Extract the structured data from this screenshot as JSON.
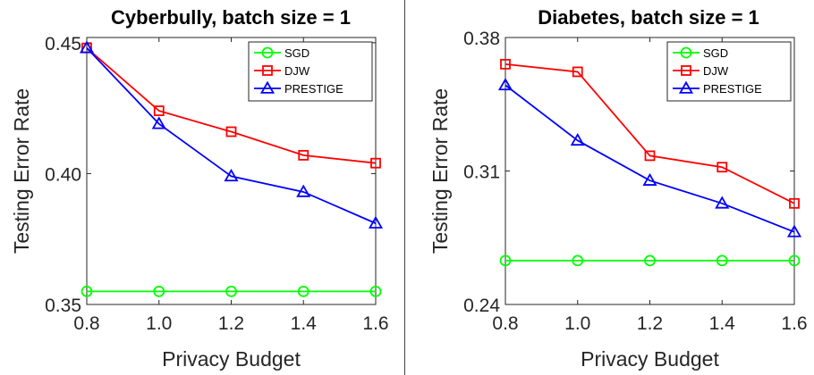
{
  "chart_data": [
    {
      "type": "line",
      "title": "Cyberbully, batch size = 1",
      "xlabel": "Privacy Budget",
      "ylabel": "Testing Error Rate",
      "x": [
        0.8,
        1.0,
        1.2,
        1.4,
        1.6
      ],
      "xticks": [
        "0.8",
        "1.0",
        "1.2",
        "1.4",
        "1.6"
      ],
      "xlim": [
        0.8,
        1.6
      ],
      "ylim": [
        0.35,
        0.452
      ],
      "yticks": [
        "0.35",
        "0.40",
        "0.45"
      ],
      "ytick_values": [
        0.35,
        0.4,
        0.45
      ],
      "legend_position": "top-right",
      "grid": false,
      "series": [
        {
          "name": "SGD",
          "color": "#00ff00",
          "marker": "circle",
          "values": [
            0.355,
            0.355,
            0.355,
            0.355,
            0.355
          ]
        },
        {
          "name": "DJW",
          "color": "#ff0000",
          "marker": "square",
          "values": [
            0.448,
            0.424,
            0.416,
            0.407,
            0.404
          ]
        },
        {
          "name": "PRESTIGE",
          "color": "#0000ff",
          "marker": "triangle",
          "values": [
            0.448,
            0.419,
            0.399,
            0.393,
            0.381
          ]
        }
      ]
    },
    {
      "type": "line",
      "title": "Diabetes, batch size = 1",
      "xlabel": "Privacy Budget",
      "ylabel": "Testing Error Rate",
      "x": [
        0.8,
        1.0,
        1.2,
        1.4,
        1.6
      ],
      "xticks": [
        "0.8",
        "1.0",
        "1.2",
        "1.4",
        "1.6"
      ],
      "xlim": [
        0.8,
        1.6
      ],
      "ylim": [
        0.24,
        0.38
      ],
      "yticks": [
        "0.24",
        "0.31",
        "0.38"
      ],
      "ytick_values": [
        0.24,
        0.31,
        0.38
      ],
      "legend_position": "top-right",
      "grid": false,
      "series": [
        {
          "name": "SGD",
          "color": "#00ff00",
          "marker": "circle",
          "values": [
            0.263,
            0.263,
            0.263,
            0.263,
            0.263
          ]
        },
        {
          "name": "DJW",
          "color": "#ff0000",
          "marker": "square",
          "values": [
            0.366,
            0.362,
            0.318,
            0.312,
            0.293
          ]
        },
        {
          "name": "PRESTIGE",
          "color": "#0000ff",
          "marker": "triangle",
          "values": [
            0.355,
            0.326,
            0.305,
            0.293,
            0.278
          ]
        }
      ]
    }
  ]
}
